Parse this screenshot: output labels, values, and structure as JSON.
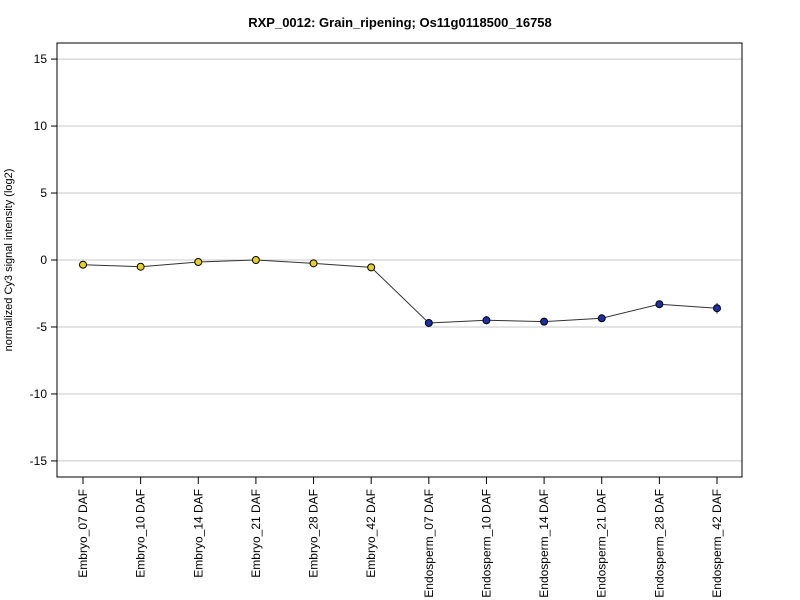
{
  "chart_data": {
    "type": "line",
    "title": "RXP_0012: Grain_ripening; Os11g0118500_16758",
    "xlabel": "",
    "ylabel": "normalized Cy3 signal intensity (log2)",
    "ylim": [
      -16.2,
      16.2
    ],
    "yticks": [
      -15,
      -10,
      -5,
      0,
      5,
      10,
      15
    ],
    "ytick_labels": [
      "-15",
      "-10",
      "-5",
      "0",
      "5",
      "10",
      "15"
    ],
    "grid": "horizontal",
    "categories": [
      "Embryo_07 DAF",
      "Embryo_10 DAF",
      "Embryo_14 DAF",
      "Embryo_21 DAF",
      "Embryo_28 DAF",
      "Embryo_42 DAF",
      "Endosperm_07 DAF",
      "Endosperm_10 DAF",
      "Endosperm_14 DAF",
      "Endosperm_21 DAF",
      "Endosperm_28 DAF",
      "Endosperm_42 DAF"
    ],
    "values": [
      -0.35,
      -0.5,
      -0.15,
      0.0,
      -0.25,
      -0.55,
      -4.7,
      -4.5,
      -4.6,
      -4.35,
      -3.3,
      -3.6
    ],
    "errors": [
      0.1,
      0.1,
      0.2,
      0.1,
      0.1,
      0.1,
      0.2,
      0.3,
      0.15,
      0.1,
      0.25,
      0.4
    ],
    "point_colors": [
      "#e8d020",
      "#e8d020",
      "#e8d020",
      "#e8d020",
      "#e8d020",
      "#e8d020",
      "#1a2fa8",
      "#1a2fa8",
      "#1a2fa8",
      "#1a2fa8",
      "#1a2fa8",
      "#1a2fa8"
    ],
    "line_color": "#333333",
    "grid_color": "#c8c8c8"
  }
}
